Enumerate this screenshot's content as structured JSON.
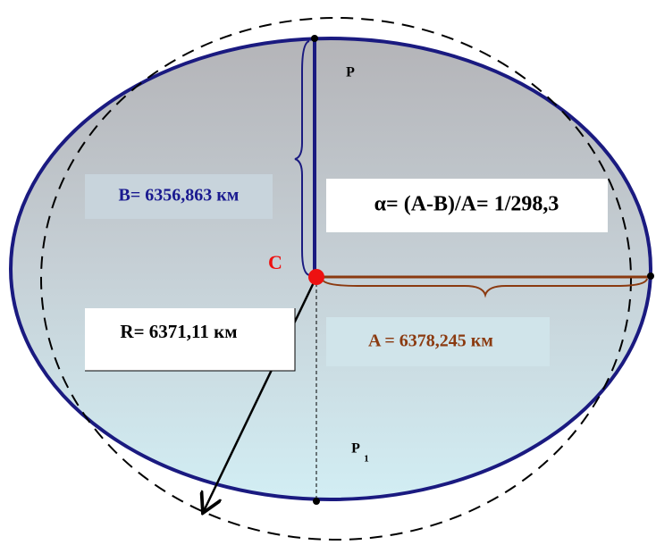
{
  "labels": {
    "b": "B= 6356,863 км",
    "flattening": "α= (A-B)/A= 1/298,3",
    "center": "C",
    "r": "R= 6371,11 км",
    "a": "A = 6378,245 км",
    "pole_north": "P",
    "pole_south": "P",
    "pole_south_sub": "1"
  }
}
